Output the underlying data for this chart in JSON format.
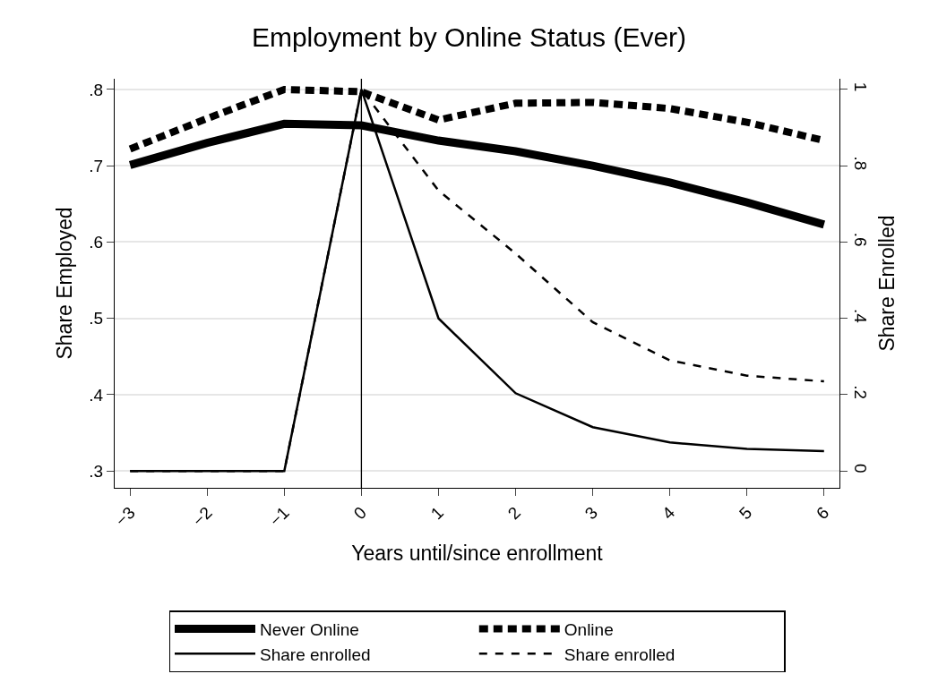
{
  "chart_data": {
    "type": "line",
    "title": "Employment by Online Status (Ever)",
    "xlabel": "Years until/since enrollment",
    "ylabel": "Share Employed",
    "y2label": "Share Enrolled",
    "x": [
      -3,
      -2,
      -1,
      0,
      1,
      2,
      3,
      4,
      5,
      6
    ],
    "series": [
      {
        "name": "Never Online",
        "color": "#000000",
        "line_style": "solid",
        "values": [
          0.701,
          0.73,
          0.755,
          0.753,
          0.733,
          0.719,
          0.7,
          0.678,
          0.652,
          0.623
        ]
      },
      {
        "name": "Online",
        "color": "#000000",
        "line_style": "dashed",
        "values": [
          0.722,
          0.762,
          0.8,
          0.797,
          0.76,
          0.782,
          0.783,
          0.775,
          0.757,
          0.733
        ]
      },
      {
        "name": "Share enrolled",
        "color": "#000000",
        "line_style": "solid",
        "axis": "y2",
        "values": [
          0,
          0,
          0,
          1,
          0.4,
          0.204,
          0.115,
          0.075,
          0.058,
          0.052
        ]
      },
      {
        "name": "Share enrolled",
        "color": "#000000",
        "line_style": "dashed",
        "axis": "y2",
        "values": [
          0,
          0,
          0,
          1,
          0.735,
          0.57,
          0.39,
          0.29,
          0.25,
          0.235
        ]
      }
    ],
    "xlim": [
      -3.2,
      6.2
    ],
    "xticks": [
      {
        "value": -3,
        "label": "−3"
      },
      {
        "value": -2,
        "label": "−2"
      },
      {
        "value": -1,
        "label": "−1"
      },
      0,
      1,
      2,
      3,
      4,
      5,
      6
    ],
    "ylim": [
      0.278,
      0.814
    ],
    "yticks": [
      {
        "value": 0.3,
        "label": ".3"
      },
      {
        "value": 0.4,
        "label": ".4"
      },
      {
        "value": 0.5,
        "label": ".5"
      },
      {
        "value": 0.6,
        "label": ".6"
      },
      {
        "value": 0.7,
        "label": ".7"
      },
      {
        "value": 0.8,
        "label": ".8"
      }
    ],
    "y2lim": [
      -0.044,
      1.028
    ],
    "y2ticks": [
      0,
      {
        "value": 0.2,
        "label": ".2"
      },
      {
        "value": 0.4,
        "label": ".4"
      },
      {
        "value": 0.6,
        "label": ".6"
      },
      {
        "value": 0.8,
        "label": ".8"
      },
      1
    ],
    "ref_lines": [
      {
        "axis": "x",
        "value": 0,
        "color": "#000000"
      }
    ],
    "grid": "y",
    "legend": "bottom",
    "marker": "none"
  }
}
